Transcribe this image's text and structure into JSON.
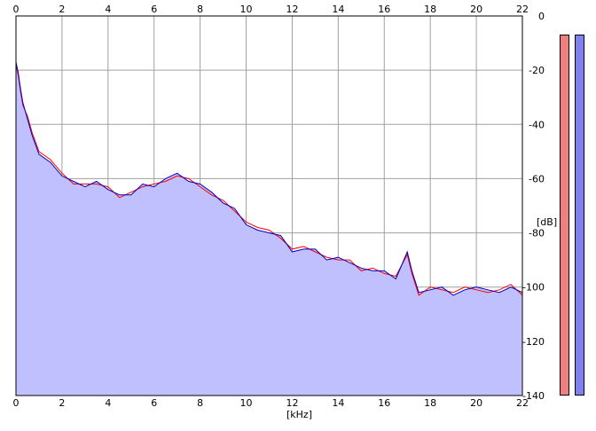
{
  "chart_data": {
    "type": "area",
    "title": "",
    "xlabel": "[kHz]",
    "ylabel": "[dB]",
    "xlim": [
      0,
      22
    ],
    "ylim": [
      -140,
      0
    ],
    "x_ticks": [
      0,
      2,
      4,
      6,
      8,
      10,
      12,
      14,
      16,
      18,
      20,
      22
    ],
    "x_tick_labels": [
      "0",
      "2",
      "4",
      "6",
      "8",
      "10",
      "12",
      "14",
      "16",
      "18",
      "20",
      "22"
    ],
    "y_ticks": [
      0,
      -20,
      -40,
      -60,
      -80,
      -100,
      -120,
      -140
    ],
    "y_tick_labels": [
      "0",
      "-20",
      "-40",
      "-60",
      "-80",
      "-100",
      "-120",
      "-140"
    ],
    "grid": true,
    "legend": "none",
    "series": [
      {
        "channel": "left",
        "color": "#ff0000",
        "x": [
          0,
          0.1,
          0.2,
          0.3,
          0.5,
          0.7,
          1.0,
          1.5,
          2.0,
          2.5,
          3.0,
          3.5,
          4.0,
          4.5,
          5.0,
          5.5,
          6.0,
          6.5,
          7.0,
          7.5,
          8.0,
          8.5,
          9.0,
          9.5,
          10.0,
          10.5,
          11.0,
          11.5,
          12.0,
          12.5,
          13.0,
          13.5,
          14.0,
          14.5,
          15.0,
          15.5,
          16.0,
          16.5,
          17.0,
          17.2,
          17.5,
          18.0,
          18.5,
          19.0,
          19.5,
          20.0,
          20.5,
          21.0,
          21.5,
          22.0
        ],
        "y": [
          -18,
          -22,
          -28,
          -33,
          -37,
          -43,
          -50,
          -53,
          -58,
          -62,
          -62,
          -62,
          -63,
          -67,
          -65,
          -63,
          -62,
          -61,
          -59,
          -60,
          -63,
          -66,
          -68,
          -72,
          -76,
          -78,
          -79,
          -82,
          -86,
          -85,
          -87,
          -89,
          -90,
          -90,
          -94,
          -93,
          -95,
          -96,
          -88,
          -95,
          -103,
          -100,
          -101,
          -102,
          -100,
          -101,
          -102,
          -101,
          -99,
          -103
        ]
      },
      {
        "channel": "right",
        "color": "#0000c0",
        "x": [
          0,
          0.1,
          0.2,
          0.3,
          0.5,
          0.7,
          1.0,
          1.5,
          2.0,
          2.5,
          3.0,
          3.5,
          4.0,
          4.5,
          5.0,
          5.5,
          6.0,
          6.5,
          7.0,
          7.5,
          8.0,
          8.5,
          9.0,
          9.5,
          10.0,
          10.5,
          11.0,
          11.5,
          12.0,
          12.5,
          13.0,
          13.5,
          14.0,
          14.5,
          15.0,
          15.5,
          16.0,
          16.5,
          17.0,
          17.2,
          17.5,
          18.0,
          18.5,
          19.0,
          19.5,
          20.0,
          20.5,
          21.0,
          21.5,
          22.0
        ],
        "y": [
          -17,
          -21,
          -27,
          -32,
          -38,
          -44,
          -51,
          -54,
          -59,
          -61,
          -63,
          -61,
          -64,
          -66,
          -66,
          -62,
          -63,
          -60,
          -58,
          -61,
          -62,
          -65,
          -69,
          -71,
          -77,
          -79,
          -80,
          -81,
          -87,
          -86,
          -86,
          -90,
          -89,
          -91,
          -93,
          -94,
          -94,
          -97,
          -87,
          -94,
          -102,
          -101,
          -100,
          -103,
          -101,
          -100,
          -101,
          -102,
          -100,
          -102
        ]
      }
    ],
    "fill_color": "#c0c0ff"
  },
  "meters": {
    "left": {
      "color": "#f08080"
    },
    "right": {
      "color": "#8080f0"
    }
  }
}
